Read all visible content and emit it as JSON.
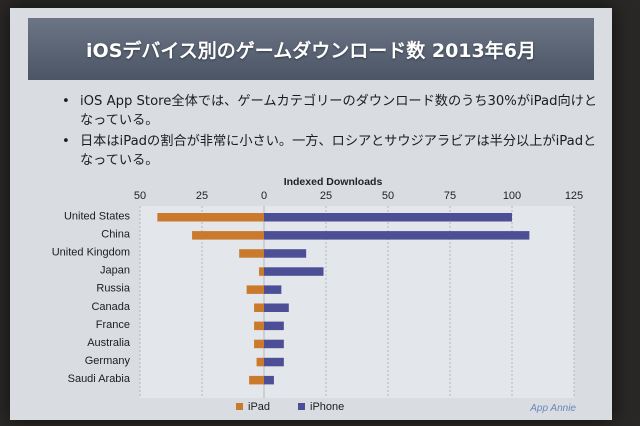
{
  "slide": {
    "title": "iOSデバイス別のゲームダウンロード数 2013年6月",
    "bullets": [
      "iOS App Store全体では、ゲームカテゴリーのダウンロード数のうち30%がiPad向けとなっている。",
      "日本はiPadの割合が非常に小さい。一方、ロシアとサウジアラビアは半分以上がiPadとなっている。"
    ],
    "watermark": "App Annie"
  },
  "chart_data": {
    "type": "bar",
    "orientation": "horizontal",
    "title": "Indexed Downloads",
    "categories": [
      "United States",
      "China",
      "United Kingdom",
      "Japan",
      "Russia",
      "Canada",
      "France",
      "Australia",
      "Germany",
      "Saudi Arabia"
    ],
    "series": [
      {
        "name": "iPad",
        "color": "#c97a2c",
        "values": [
          43,
          29,
          10,
          2,
          7,
          4,
          4,
          4,
          3,
          6
        ],
        "direction": "left"
      },
      {
        "name": "iPhone",
        "color": "#4d4f96",
        "values": [
          100,
          107,
          17,
          24,
          7,
          10,
          8,
          8,
          8,
          4
        ],
        "direction": "right"
      }
    ],
    "x_ticks": [
      "50",
      "25",
      "0",
      "25",
      "50",
      "75",
      "100",
      "125"
    ],
    "xlim": [
      -50,
      125
    ],
    "legend": [
      "iPad",
      "iPhone"
    ],
    "legend_position": "bottom",
    "grid": true
  }
}
